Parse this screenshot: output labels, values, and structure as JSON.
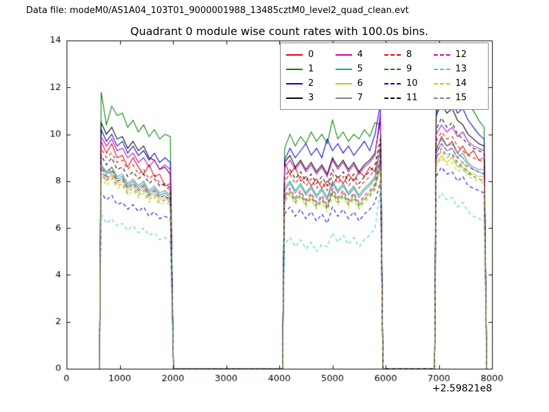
{
  "header": {
    "datafile": "Data file: modeM0/AS1A04_103T01_9000001988_13485cztM0_level2_quad_clean.evt"
  },
  "chart_data": {
    "type": "line",
    "title": "Quadrant 0 module wise count rates with 100.0s bins.",
    "xlabel": "",
    "ylabel": "",
    "xlim": [
      0,
      8000
    ],
    "ylim": [
      0,
      14
    ],
    "xticks": [
      0,
      1000,
      2000,
      3000,
      4000,
      5000,
      6000,
      7000,
      8000
    ],
    "yticks": [
      0,
      2,
      4,
      6,
      8,
      10,
      12,
      14
    ],
    "x_offset_text": "+2.59821e8",
    "grid": false,
    "legend_position": "upper right, 4 columns",
    "x_segments": [
      [
        620,
        650,
        750,
        850,
        950,
        1050,
        1150,
        1250,
        1350,
        1450,
        1550,
        1650,
        1750,
        1850,
        1950,
        2010
      ],
      [
        4060,
        4100,
        4200,
        4300,
        4400,
        4500,
        4600,
        4700,
        4800,
        4900,
        5000,
        5100,
        5200,
        5300,
        5400,
        5500,
        5600,
        5700,
        5800,
        5900,
        5950
      ],
      [
        6920,
        6950,
        7050,
        7150,
        7250,
        7350,
        7450,
        7550,
        7650,
        7750,
        7850,
        7900
      ]
    ],
    "series": [
      {
        "name": "0",
        "color": "#e00000",
        "line": "solid",
        "y_segments": [
          [
            0,
            9.7,
            9.2,
            9.6,
            9.0,
            9.1,
            8.6,
            9.0,
            8.6,
            8.3,
            8.7,
            8.2,
            8.3,
            7.8,
            7.9,
            0
          ],
          [
            0,
            8.8,
            8.3,
            8.6,
            8.0,
            8.2,
            7.8,
            8.1,
            7.7,
            8.0,
            7.8,
            8.2,
            7.9,
            8.3,
            8.0,
            8.4,
            8.2,
            8.6,
            8.4,
            9.3,
            0
          ],
          [
            0,
            9.3,
            9.9,
            9.5,
            9.7,
            9.2,
            9.5,
            9.1,
            9.3,
            8.9,
            9.0,
            0
          ]
        ]
      },
      {
        "name": "1",
        "color": "#008000",
        "line": "solid",
        "y_segments": [
          [
            0,
            11.8,
            10.4,
            11.2,
            10.8,
            10.9,
            10.3,
            10.6,
            10.1,
            10.4,
            9.9,
            10.2,
            9.8,
            10.0,
            9.9,
            0
          ],
          [
            0,
            9.4,
            10.0,
            9.5,
            9.9,
            9.6,
            10.1,
            9.7,
            10.0,
            9.6,
            10.6,
            9.8,
            10.1,
            9.7,
            10.0,
            9.8,
            10.2,
            9.9,
            10.5,
            10.4,
            0
          ],
          [
            0,
            11.5,
            13.1,
            12.0,
            11.8,
            11.5,
            11.6,
            11.2,
            11.0,
            10.6,
            10.3,
            0
          ]
        ]
      },
      {
        "name": "2",
        "color": "#0000dd",
        "line": "solid",
        "y_segments": [
          [
            0,
            10.2,
            9.7,
            10.0,
            9.5,
            9.7,
            9.2,
            9.5,
            9.1,
            9.3,
            8.9,
            9.2,
            8.8,
            9.0,
            8.8,
            0
          ],
          [
            0,
            8.9,
            9.4,
            9.0,
            9.3,
            9.6,
            9.1,
            9.4,
            9.0,
            9.8,
            9.3,
            9.6,
            9.2,
            9.5,
            9.1,
            9.4,
            9.7,
            9.3,
            10.0,
            11.3,
            0
          ],
          [
            0,
            10.9,
            11.6,
            11.2,
            11.4,
            10.9,
            11.1,
            10.6,
            10.3,
            10.0,
            9.8,
            0
          ]
        ]
      },
      {
        "name": "3",
        "color": "#000000",
        "line": "solid",
        "y_segments": [
          [
            0,
            10.5,
            10.0,
            10.3,
            9.8,
            9.9,
            9.4,
            9.7,
            9.3,
            9.5,
            9.0,
            8.9,
            8.5,
            8.6,
            8.3,
            0
          ],
          [
            0,
            8.8,
            9.1,
            8.6,
            8.9,
            8.5,
            8.8,
            8.4,
            8.7,
            8.3,
            9.0,
            8.6,
            8.9,
            8.5,
            8.8,
            8.4,
            8.7,
            8.9,
            9.2,
            10.6,
            0
          ],
          [
            0,
            10.8,
            11.3,
            10.9,
            11.1,
            10.6,
            10.4,
            10.0,
            9.8,
            9.6,
            9.5,
            0
          ]
        ]
      },
      {
        "name": "4",
        "color": "#bf00bf",
        "line": "solid",
        "y_segments": [
          [
            0,
            9.9,
            9.5,
            9.8,
            9.3,
            9.4,
            9.0,
            9.2,
            8.8,
            9.0,
            8.6,
            8.9,
            8.5,
            8.7,
            8.5,
            0
          ],
          [
            0,
            8.6,
            8.9,
            8.5,
            8.8,
            8.4,
            8.7,
            8.3,
            8.6,
            8.2,
            8.9,
            8.5,
            8.8,
            8.4,
            8.7,
            8.3,
            8.6,
            8.8,
            9.1,
            10.9,
            0
          ],
          [
            0,
            10.0,
            10.4,
            10.1,
            10.3,
            9.9,
            10.1,
            9.7,
            9.5,
            9.4,
            9.3,
            0
          ]
        ]
      },
      {
        "name": "5",
        "color": "#00a8a0",
        "line": "solid",
        "y_segments": [
          [
            0,
            8.7,
            8.3,
            8.6,
            8.1,
            8.2,
            7.8,
            8.0,
            7.7,
            7.9,
            7.5,
            7.7,
            7.4,
            7.5,
            7.3,
            0
          ],
          [
            0,
            7.7,
            8.0,
            7.6,
            7.9,
            7.5,
            7.8,
            7.4,
            7.7,
            7.3,
            8.0,
            7.6,
            7.9,
            7.5,
            7.8,
            7.4,
            7.7,
            7.9,
            8.2,
            9.4,
            0
          ],
          [
            0,
            9.4,
            9.8,
            9.5,
            9.6,
            9.2,
            9.0,
            8.7,
            8.5,
            8.4,
            8.3,
            0
          ]
        ]
      },
      {
        "name": "6",
        "color": "#c8c800",
        "line": "solid",
        "y_segments": [
          [
            0,
            8.4,
            8.0,
            8.3,
            7.9,
            8.0,
            7.6,
            7.8,
            7.5,
            7.7,
            7.3,
            7.5,
            7.2,
            7.3,
            7.1,
            0
          ],
          [
            0,
            7.3,
            7.6,
            7.2,
            7.5,
            7.1,
            7.4,
            7.0,
            7.3,
            6.9,
            7.6,
            7.2,
            7.5,
            7.1,
            7.4,
            7.0,
            7.3,
            7.5,
            7.8,
            8.6,
            0
          ],
          [
            0,
            8.7,
            9.1,
            8.8,
            9.0,
            8.6,
            8.8,
            8.4,
            8.3,
            8.2,
            8.2,
            0
          ]
        ]
      },
      {
        "name": "7",
        "color": "#808080",
        "line": "solid",
        "y_segments": [
          [
            0,
            8.7,
            8.4,
            8.6,
            8.2,
            8.3,
            7.9,
            8.1,
            7.8,
            8.0,
            7.6,
            7.8,
            7.5,
            7.6,
            7.4,
            0
          ],
          [
            0,
            7.6,
            7.9,
            7.5,
            7.8,
            7.4,
            7.7,
            7.3,
            7.6,
            7.2,
            7.9,
            7.5,
            7.8,
            7.4,
            7.7,
            7.3,
            7.6,
            7.8,
            8.1,
            9.0,
            0
          ],
          [
            0,
            9.2,
            9.6,
            9.3,
            9.4,
            9.0,
            9.2,
            8.8,
            8.6,
            8.5,
            8.5,
            0
          ]
        ]
      },
      {
        "name": "8",
        "color": "#e00000",
        "line": "dashed",
        "y_segments": [
          [
            0,
            9.4,
            9.0,
            9.2,
            8.8,
            8.9,
            8.5,
            8.7,
            8.3,
            8.5,
            8.1,
            8.3,
            7.9,
            7.8,
            7.6,
            0
          ],
          [
            0,
            8.0,
            8.3,
            7.9,
            8.2,
            7.8,
            8.1,
            7.7,
            8.0,
            7.6,
            8.3,
            7.9,
            8.2,
            7.8,
            8.1,
            7.7,
            8.0,
            8.2,
            8.5,
            9.6,
            0
          ],
          [
            0,
            9.7,
            10.1,
            9.8,
            9.9,
            9.5,
            9.3,
            9.1,
            9.0,
            8.9,
            8.8,
            0
          ]
        ]
      },
      {
        "name": "9",
        "color": "#008000",
        "line": "dashed",
        "y_segments": [
          [
            0,
            8.6,
            8.2,
            8.5,
            8.0,
            8.1,
            7.7,
            7.9,
            7.6,
            7.8,
            7.4,
            7.6,
            7.3,
            7.4,
            7.2,
            0
          ],
          [
            0,
            7.2,
            7.5,
            7.1,
            7.4,
            7.0,
            7.3,
            6.9,
            7.2,
            6.8,
            7.5,
            7.1,
            7.4,
            7.0,
            7.3,
            6.9,
            7.2,
            7.4,
            7.7,
            8.8,
            0
          ],
          [
            0,
            9.0,
            9.4,
            9.1,
            9.2,
            8.8,
            8.6,
            8.4,
            8.2,
            8.1,
            8.0,
            0
          ]
        ]
      },
      {
        "name": "10",
        "color": "#0000dd",
        "line": "dashed",
        "y_segments": [
          [
            0,
            7.5,
            7.2,
            7.4,
            7.0,
            7.1,
            6.8,
            7.0,
            6.7,
            6.9,
            6.5,
            6.7,
            6.4,
            6.5,
            6.4,
            0
          ],
          [
            0,
            6.6,
            6.9,
            6.5,
            6.8,
            6.4,
            6.7,
            6.3,
            6.6,
            6.2,
            6.9,
            6.5,
            6.8,
            6.4,
            6.7,
            6.3,
            6.6,
            6.8,
            7.1,
            8.0,
            0
          ],
          [
            0,
            8.2,
            8.6,
            8.3,
            8.4,
            8.0,
            8.2,
            7.8,
            7.7,
            7.6,
            7.5,
            0
          ]
        ]
      },
      {
        "name": "11",
        "color": "#000000",
        "line": "dashed",
        "y_segments": [
          [
            0,
            9.1,
            8.7,
            9.0,
            8.5,
            8.6,
            8.2,
            8.4,
            8.1,
            8.3,
            7.9,
            8.1,
            7.8,
            7.9,
            7.7,
            0
          ],
          [
            0,
            8.2,
            8.5,
            8.1,
            8.4,
            8.0,
            8.3,
            7.9,
            8.2,
            7.8,
            8.5,
            8.1,
            8.4,
            8.0,
            8.3,
            7.9,
            8.2,
            8.4,
            8.7,
            9.8,
            0
          ],
          [
            0,
            10.2,
            10.7,
            10.3,
            10.5,
            10.0,
            9.8,
            9.6,
            9.4,
            9.3,
            9.2,
            0
          ]
        ]
      },
      {
        "name": "12",
        "color": "#bf00bf",
        "line": "dashed",
        "y_segments": [
          [
            0,
            8.5,
            8.1,
            8.4,
            8.0,
            8.1,
            7.7,
            7.9,
            7.6,
            7.8,
            7.4,
            7.6,
            7.3,
            7.4,
            7.1,
            0
          ],
          [
            0,
            7.4,
            7.7,
            7.3,
            7.6,
            7.2,
            7.5,
            7.1,
            7.4,
            7.0,
            7.7,
            7.3,
            7.6,
            7.2,
            7.5,
            7.1,
            7.4,
            7.6,
            7.9,
            8.9,
            0
          ],
          [
            0,
            9.2,
            9.6,
            9.3,
            9.4,
            9.0,
            8.8,
            8.6,
            8.5,
            8.4,
            8.3,
            0
          ]
        ]
      },
      {
        "name": "13",
        "color": "#2fd3cb",
        "line": "dashed",
        "y_segments": [
          [
            0,
            6.6,
            6.2,
            6.4,
            6.1,
            6.2,
            5.9,
            6.1,
            5.8,
            6.0,
            5.7,
            5.8,
            5.5,
            5.6,
            5.4,
            0
          ],
          [
            0,
            5.3,
            5.6,
            5.2,
            5.5,
            5.1,
            5.4,
            5.0,
            5.3,
            5.2,
            5.8,
            5.4,
            5.7,
            5.3,
            5.6,
            5.2,
            5.5,
            5.7,
            6.0,
            7.6,
            0
          ],
          [
            0,
            7.1,
            7.5,
            7.2,
            7.3,
            6.9,
            7.1,
            6.7,
            6.5,
            6.4,
            6.3,
            0
          ]
        ]
      },
      {
        "name": "14",
        "color": "#c8c800",
        "line": "dashed",
        "y_segments": [
          [
            0,
            8.2,
            7.8,
            8.1,
            7.7,
            7.8,
            7.4,
            7.6,
            7.3,
            7.5,
            7.1,
            7.3,
            7.0,
            7.1,
            7.0,
            0
          ],
          [
            0,
            7.1,
            7.4,
            7.0,
            7.3,
            6.9,
            7.2,
            6.8,
            7.1,
            6.7,
            7.4,
            7.0,
            7.3,
            6.9,
            7.2,
            6.8,
            7.1,
            7.3,
            7.6,
            8.5,
            0
          ],
          [
            0,
            8.6,
            9.0,
            8.7,
            8.8,
            8.4,
            8.6,
            8.2,
            8.1,
            8.0,
            7.9,
            0
          ]
        ]
      },
      {
        "name": "15",
        "color": "#808080",
        "line": "dashed",
        "y_segments": [
          [
            0,
            8.3,
            8.0,
            8.2,
            7.8,
            7.9,
            7.5,
            7.7,
            7.4,
            7.6,
            7.2,
            7.4,
            7.1,
            7.2,
            7.1,
            0
          ],
          [
            0,
            7.3,
            7.6,
            7.2,
            7.5,
            7.1,
            7.4,
            7.0,
            7.3,
            6.9,
            7.6,
            7.2,
            7.5,
            7.1,
            7.4,
            7.0,
            7.3,
            7.5,
            7.8,
            8.7,
            0
          ],
          [
            0,
            8.9,
            9.3,
            9.0,
            9.1,
            8.7,
            8.5,
            8.3,
            8.2,
            8.1,
            8.0,
            0
          ]
        ]
      }
    ]
  }
}
